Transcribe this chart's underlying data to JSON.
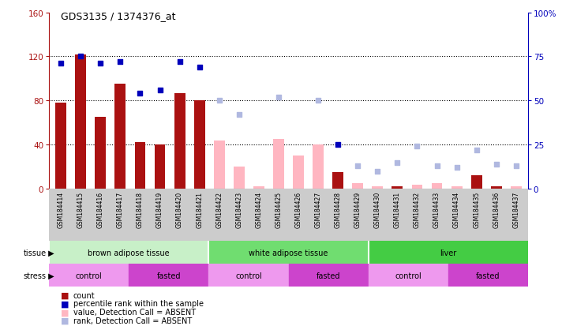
{
  "title": "GDS3135 / 1374376_at",
  "samples": [
    "GSM184414",
    "GSM184415",
    "GSM184416",
    "GSM184417",
    "GSM184418",
    "GSM184419",
    "GSM184420",
    "GSM184421",
    "GSM184422",
    "GSM184423",
    "GSM184424",
    "GSM184425",
    "GSM184426",
    "GSM184427",
    "GSM184428",
    "GSM184429",
    "GSM184430",
    "GSM184431",
    "GSM184432",
    "GSM184433",
    "GSM184434",
    "GSM184435",
    "GSM184436",
    "GSM184437"
  ],
  "count_present": [
    78,
    122,
    65,
    95,
    42,
    40,
    87,
    80,
    null,
    null,
    null,
    null,
    null,
    null,
    15,
    null,
    null,
    2,
    null,
    null,
    null,
    12,
    2,
    null
  ],
  "rank_present": [
    71,
    75,
    71,
    72,
    54,
    56,
    72,
    69,
    null,
    null,
    null,
    null,
    null,
    null,
    25,
    null,
    null,
    null,
    null,
    null,
    null,
    null,
    null,
    null
  ],
  "count_absent": [
    null,
    null,
    null,
    null,
    null,
    null,
    null,
    null,
    44,
    20,
    2,
    45,
    30,
    40,
    null,
    5,
    2,
    null,
    4,
    5,
    2,
    null,
    null,
    2
  ],
  "rank_absent": [
    null,
    null,
    null,
    null,
    null,
    null,
    null,
    null,
    50,
    42,
    null,
    52,
    null,
    50,
    null,
    13,
    10,
    15,
    24,
    13,
    12,
    22,
    14,
    13
  ],
  "tissue_groups": [
    {
      "label": "brown adipose tissue",
      "start": 0,
      "end": 8,
      "color": "#c8f0c8"
    },
    {
      "label": "white adipose tissue",
      "start": 8,
      "end": 16,
      "color": "#70dd70"
    },
    {
      "label": "liver",
      "start": 16,
      "end": 24,
      "color": "#44cc44"
    }
  ],
  "stress_groups": [
    {
      "label": "control",
      "start": 0,
      "end": 4,
      "dark": false
    },
    {
      "label": "fasted",
      "start": 4,
      "end": 8,
      "dark": true
    },
    {
      "label": "control",
      "start": 8,
      "end": 12,
      "dark": false
    },
    {
      "label": "fasted",
      "start": 12,
      "end": 16,
      "dark": true
    },
    {
      "label": "control",
      "start": 16,
      "end": 20,
      "dark": false
    },
    {
      "label": "fasted",
      "start": 20,
      "end": 24,
      "dark": true
    }
  ],
  "ylim_left": [
    0,
    160
  ],
  "ylim_right": [
    0,
    100
  ],
  "yticks_left": [
    0,
    40,
    80,
    120,
    160
  ],
  "yticks_right": [
    0,
    25,
    50,
    75,
    100
  ],
  "color_present_bar": "#aa1111",
  "color_present_rank": "#0000bb",
  "color_absent_bar": "#ffb6c1",
  "color_absent_rank": "#b0b8e0",
  "stress_light": "#ee99ee",
  "stress_dark": "#cc44cc",
  "xtick_bg": "#cccccc",
  "legend_items": [
    {
      "color": "#aa1111",
      "label": "count"
    },
    {
      "color": "#0000bb",
      "label": "percentile rank within the sample"
    },
    {
      "color": "#ffb6c1",
      "label": "value, Detection Call = ABSENT"
    },
    {
      "color": "#b0b8e0",
      "label": "rank, Detection Call = ABSENT"
    }
  ]
}
